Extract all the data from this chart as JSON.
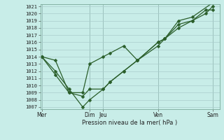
{
  "xlabel": "Pression niveau de la mer( hPa )",
  "ylim_min": 1007,
  "ylim_max": 1021,
  "yticks": [
    1007,
    1008,
    1009,
    1010,
    1011,
    1012,
    1013,
    1014,
    1015,
    1016,
    1017,
    1018,
    1019,
    1020,
    1021
  ],
  "bg_color": "#c8ede8",
  "line_color": "#2a5e2a",
  "grid_major_color": "#aacccc",
  "grid_minor_color": "#ddeee8",
  "xtick_labels": [
    "Mer",
    "Dim",
    "Jeu",
    "Ven",
    "Sam"
  ],
  "xtick_x": [
    0.0,
    3.5,
    4.5,
    8.5,
    12.5
  ],
  "xvlines": [
    0.0,
    3.5,
    4.5,
    8.5,
    12.5
  ],
  "xlim_min": -0.1,
  "xlim_max": 13.0,
  "s1_x": [
    0,
    1,
    2,
    3,
    3.5,
    4.5,
    5,
    6,
    7,
    8.5,
    9,
    10,
    11,
    12,
    12.5
  ],
  "s1_y": [
    1014,
    1013.5,
    1009.0,
    1009.0,
    1013.0,
    1014.0,
    1014.5,
    1015.5,
    1013.5,
    1016.0,
    1016.5,
    1018.0,
    1019.0,
    1020.0,
    1021.0
  ],
  "s2_x": [
    0,
    1,
    2,
    3,
    3.5,
    4.5,
    5,
    6,
    7,
    8.5,
    9,
    10,
    11,
    12,
    12.5
  ],
  "s2_y": [
    1014,
    1011.5,
    1009.0,
    1008.5,
    1009.5,
    1009.5,
    1010.5,
    1012.0,
    1013.5,
    1015.5,
    1016.5,
    1018.5,
    1019.0,
    1020.5,
    1020.5
  ],
  "s3_x": [
    0,
    1,
    2,
    3,
    3.5,
    4.5,
    5,
    6,
    7,
    8.5,
    9,
    10,
    11,
    12.5
  ],
  "s3_y": [
    1014,
    1012.0,
    1009.5,
    1007.0,
    1008.0,
    1009.5,
    1010.5,
    1012.0,
    1013.5,
    1016.0,
    1016.5,
    1019.0,
    1019.5,
    1021.5
  ]
}
